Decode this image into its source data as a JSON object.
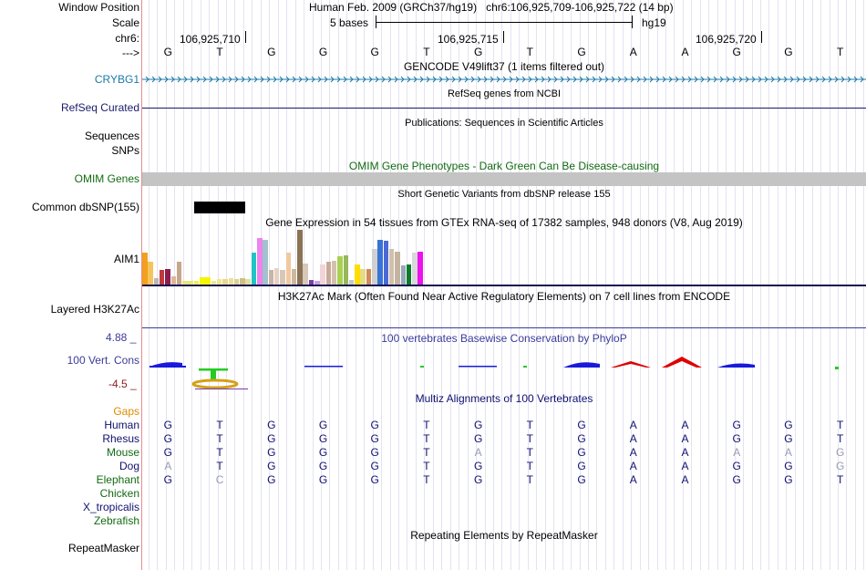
{
  "header": {
    "window_position_label": "Window Position",
    "window_position_value": "Human Feb. 2009 (GRCh37/hg19)   chr6:106,925,709-106,925,722 (14 bp)",
    "scale_label": "Scale",
    "scale_value": "5 bases",
    "scale_assembly": "hg19",
    "chrom_label": "chr6:",
    "coord_ticks": [
      "106,925,710",
      "106,925,715",
      "106,925,720"
    ],
    "strand_label": "--->"
  },
  "reference_sequence": [
    "G",
    "T",
    "G",
    "G",
    "G",
    "T",
    "G",
    "T",
    "G",
    "A",
    "A",
    "G",
    "G",
    "T"
  ],
  "colors": {
    "label_blue": "#1a1a6e",
    "gene_blue": "#1c7aa6",
    "omim_green": "#126b12",
    "phylop_blue": "#3b3b99",
    "gaps_orange": "#e08a00",
    "navy": "#101070",
    "dark_red": "#8b2020",
    "grey_bar": "#c4c4c4"
  },
  "tracks": {
    "gencode_title": "GENCODE V49lift37 (1 items filtered out)",
    "gene_label": "CRYBG1",
    "refseq_title": "RefSeq genes from NCBI",
    "refseq_label": "RefSeq Curated",
    "pubs_title": "Publications: Sequences in Scientific Articles",
    "sequences_label": "Sequences",
    "snps_label": "SNPs",
    "omim_title": "OMIM Gene Phenotypes - Dark Green Can Be Disease-causing",
    "omim_label": "OMIM Genes",
    "dbsnp_title": "Short Genetic Variants from dbSNP release 155",
    "dbsnp_label": "Common dbSNP(155)",
    "gtex_title": "Gene Expression in 54 tissues from GTEx RNA-seq of 17382 samples, 948 donors (V8, Aug 2019)",
    "gtex_label": "AIM1",
    "h3k27ac_title": "H3K27Ac Mark (Often Found Near Active Regulatory Elements) on 7 cell lines from ENCODE",
    "h3k27ac_label": "Layered H3K27Ac",
    "phylop_title": "100 vertebrates Basewise Conservation by PhyloP",
    "phylop_label": "100 Vert. Cons",
    "phylop_max": "4.88 _",
    "phylop_min": "-4.5 _",
    "multiz_title": "Multiz Alignments of 100 Vertebrates",
    "repeat_title": "Repeating Elements by RepeatMasker",
    "repeat_label": "RepeatMasker"
  },
  "gtex_values": [
    {
      "v": 0.58,
      "c": "#f2a01e"
    },
    {
      "v": 0.42,
      "c": "#f7c35d"
    },
    {
      "v": 0.12,
      "c": "#b8b8b8"
    },
    {
      "v": 0.26,
      "c": "#bf3a3a"
    },
    {
      "v": 0.28,
      "c": "#8a1f4f"
    },
    {
      "v": 0.15,
      "c": "#d9b89c"
    },
    {
      "v": 0.41,
      "c": "#c7a78b"
    },
    {
      "v": 0.06,
      "c": "#e8e67a"
    },
    {
      "v": 0.06,
      "c": "#e8e67a"
    },
    {
      "v": 0.07,
      "c": "#eeee55"
    },
    {
      "v": 0.13,
      "c": "#f5f500"
    },
    {
      "v": 0.14,
      "c": "#f5f500"
    },
    {
      "v": 0.07,
      "c": "#e8e8a0"
    },
    {
      "v": 0.1,
      "c": "#f0e68c"
    },
    {
      "v": 0.1,
      "c": "#e8d890"
    },
    {
      "v": 0.12,
      "c": "#eedd99"
    },
    {
      "v": 0.1,
      "c": "#ddd090"
    },
    {
      "v": 0.11,
      "c": "#ccc088"
    },
    {
      "v": 0.1,
      "c": "#e0e0a0"
    },
    {
      "v": 0.58,
      "c": "#20c4c4"
    },
    {
      "v": 0.85,
      "c": "#ee82ee"
    },
    {
      "v": 0.82,
      "c": "#a2c2cc"
    },
    {
      "v": 0.26,
      "c": "#c8b4a8"
    },
    {
      "v": 0.3,
      "c": "#e6d2c4"
    },
    {
      "v": 0.26,
      "c": "#d7c8b6"
    },
    {
      "v": 0.58,
      "c": "#f0c8a0"
    },
    {
      "v": 0.28,
      "c": "#cdb89f"
    },
    {
      "v": 1.0,
      "c": "#8b7355"
    },
    {
      "v": 0.38,
      "c": "#d8c8b8"
    },
    {
      "v": 0.08,
      "c": "#7b3fa0"
    },
    {
      "v": 0.06,
      "c": "#c8a0e0"
    },
    {
      "v": 0.36,
      "c": "#f2d4d8"
    },
    {
      "v": 0.42,
      "c": "#c8aa96"
    },
    {
      "v": 0.44,
      "c": "#d4c0ae"
    },
    {
      "v": 0.52,
      "c": "#aad050"
    },
    {
      "v": 0.53,
      "c": "#96b85a"
    },
    {
      "v": 0.08,
      "c": "#c8c8c8"
    },
    {
      "v": 0.37,
      "c": "#ffdd00"
    },
    {
      "v": 0.28,
      "c": "#e6dc82"
    },
    {
      "v": 0.28,
      "c": "#cd8c5a"
    },
    {
      "v": 0.65,
      "c": "#d0d0d0"
    },
    {
      "v": 0.82,
      "c": "#3873d6"
    },
    {
      "v": 0.8,
      "c": "#4a6ad6"
    },
    {
      "v": 0.65,
      "c": "#d2c0ac"
    },
    {
      "v": 0.6,
      "c": "#c4b4a0"
    },
    {
      "v": 0.35,
      "c": "#98a8b8"
    },
    {
      "v": 0.37,
      "c": "#0c7c2c"
    },
    {
      "v": 0.58,
      "c": "#d8d8d8"
    },
    {
      "v": 0.6,
      "c": "#ee12ee"
    }
  ],
  "alignment": {
    "gaps_label": "Gaps",
    "species": [
      {
        "name": "Human",
        "color": "#101070",
        "bases": [
          "G",
          "T",
          "G",
          "G",
          "G",
          "T",
          "G",
          "T",
          "G",
          "A",
          "A",
          "G",
          "G",
          "T"
        ]
      },
      {
        "name": "Rhesus",
        "color": "#101070",
        "bases": [
          "G",
          "T",
          "G",
          "G",
          "G",
          "T",
          "G",
          "T",
          "G",
          "A",
          "A",
          "G",
          "G",
          "T"
        ]
      },
      {
        "name": "Mouse",
        "color": "#126b12",
        "bases": [
          "G",
          "T",
          "G",
          "G",
          "G",
          "T",
          "A",
          "T",
          "G",
          "A",
          "A",
          "A",
          "A",
          "G"
        ]
      },
      {
        "name": "Dog",
        "color": "#101070",
        "bases": [
          "A",
          "T",
          "G",
          "G",
          "G",
          "T",
          "G",
          "T",
          "G",
          "A",
          "A",
          "G",
          "G",
          "G"
        ]
      },
      {
        "name": "Elephant",
        "color": "#126b12",
        "bases": [
          "G",
          "C",
          "G",
          "G",
          "G",
          "T",
          "G",
          "T",
          "G",
          "A",
          "A",
          "G",
          "G",
          "T"
        ]
      },
      {
        "name": "Chicken",
        "color": "#126b12",
        "bases": []
      },
      {
        "name": "X_tropicalis",
        "color": "#101070",
        "bases": []
      },
      {
        "name": "Zebrafish",
        "color": "#126b12",
        "bases": []
      }
    ]
  }
}
